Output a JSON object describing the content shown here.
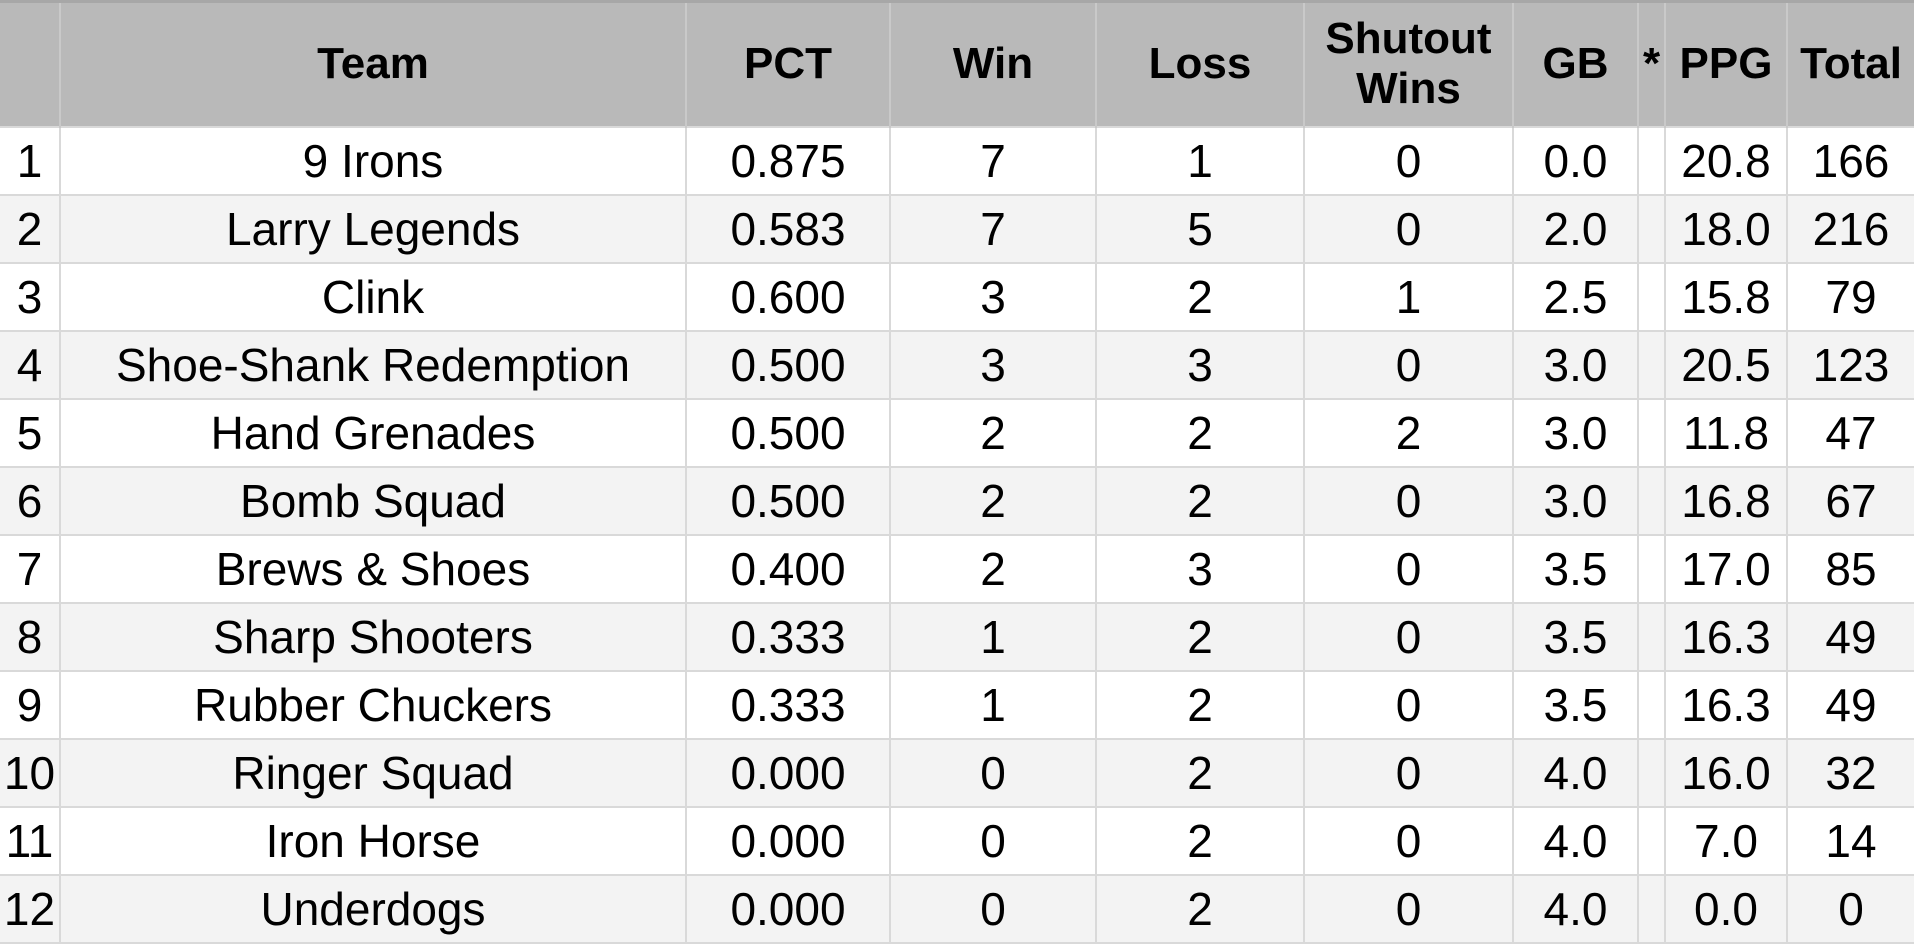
{
  "table": {
    "columns": [
      {
        "key": "rank",
        "label": ""
      },
      {
        "key": "team",
        "label": "Team"
      },
      {
        "key": "pct",
        "label": "PCT"
      },
      {
        "key": "win",
        "label": "Win"
      },
      {
        "key": "loss",
        "label": "Loss"
      },
      {
        "key": "shutout",
        "label": "Shutout Wins"
      },
      {
        "key": "gb",
        "label": "GB"
      },
      {
        "key": "star",
        "label": "*"
      },
      {
        "key": "ppg",
        "label": "PPG"
      },
      {
        "key": "total",
        "label": "Total"
      }
    ],
    "rows": [
      {
        "rank": "1",
        "team": "9 Irons",
        "pct": "0.875",
        "win": "7",
        "loss": "1",
        "shutout": "0",
        "gb": "0.0",
        "star": "",
        "ppg": "20.8",
        "total": "166"
      },
      {
        "rank": "2",
        "team": "Larry Legends",
        "pct": "0.583",
        "win": "7",
        "loss": "5",
        "shutout": "0",
        "gb": "2.0",
        "star": "",
        "ppg": "18.0",
        "total": "216"
      },
      {
        "rank": "3",
        "team": "Clink",
        "pct": "0.600",
        "win": "3",
        "loss": "2",
        "shutout": "1",
        "gb": "2.5",
        "star": "",
        "ppg": "15.8",
        "total": "79"
      },
      {
        "rank": "4",
        "team": "Shoe-Shank Redemption",
        "pct": "0.500",
        "win": "3",
        "loss": "3",
        "shutout": "0",
        "gb": "3.0",
        "star": "",
        "ppg": "20.5",
        "total": "123"
      },
      {
        "rank": "5",
        "team": "Hand Grenades",
        "pct": "0.500",
        "win": "2",
        "loss": "2",
        "shutout": "2",
        "gb": "3.0",
        "star": "",
        "ppg": "11.8",
        "total": "47"
      },
      {
        "rank": "6",
        "team": "Bomb Squad",
        "pct": "0.500",
        "win": "2",
        "loss": "2",
        "shutout": "0",
        "gb": "3.0",
        "star": "",
        "ppg": "16.8",
        "total": "67"
      },
      {
        "rank": "7",
        "team": "Brews & Shoes",
        "pct": "0.400",
        "win": "2",
        "loss": "3",
        "shutout": "0",
        "gb": "3.5",
        "star": "",
        "ppg": "17.0",
        "total": "85"
      },
      {
        "rank": "8",
        "team": "Sharp Shooters",
        "pct": "0.333",
        "win": "1",
        "loss": "2",
        "shutout": "0",
        "gb": "3.5",
        "star": "",
        "ppg": "16.3",
        "total": "49"
      },
      {
        "rank": "9",
        "team": "Rubber Chuckers",
        "pct": "0.333",
        "win": "1",
        "loss": "2",
        "shutout": "0",
        "gb": "3.5",
        "star": "",
        "ppg": "16.3",
        "total": "49"
      },
      {
        "rank": "10",
        "team": "Ringer Squad",
        "pct": "0.000",
        "win": "0",
        "loss": "2",
        "shutout": "0",
        "gb": "4.0",
        "star": "",
        "ppg": "16.0",
        "total": "32"
      },
      {
        "rank": "11",
        "team": "Iron Horse",
        "pct": "0.000",
        "win": "0",
        "loss": "2",
        "shutout": "0",
        "gb": "4.0",
        "star": "",
        "ppg": "7.0",
        "total": "14"
      },
      {
        "rank": "12",
        "team": "Underdogs",
        "pct": "0.000",
        "win": "0",
        "loss": "2",
        "shutout": "0",
        "gb": "4.0",
        "star": "",
        "ppg": "0.0",
        "total": "0"
      }
    ]
  },
  "colors": {
    "header_bg": "#b9b9b9",
    "header_grid": "#c9c9c9",
    "top_edge": "#a7a7a7",
    "row_bg": "#ffffff",
    "row_alt_bg": "#f3f3f3",
    "grid_line": "#d9d9d9",
    "text": "#000000"
  }
}
